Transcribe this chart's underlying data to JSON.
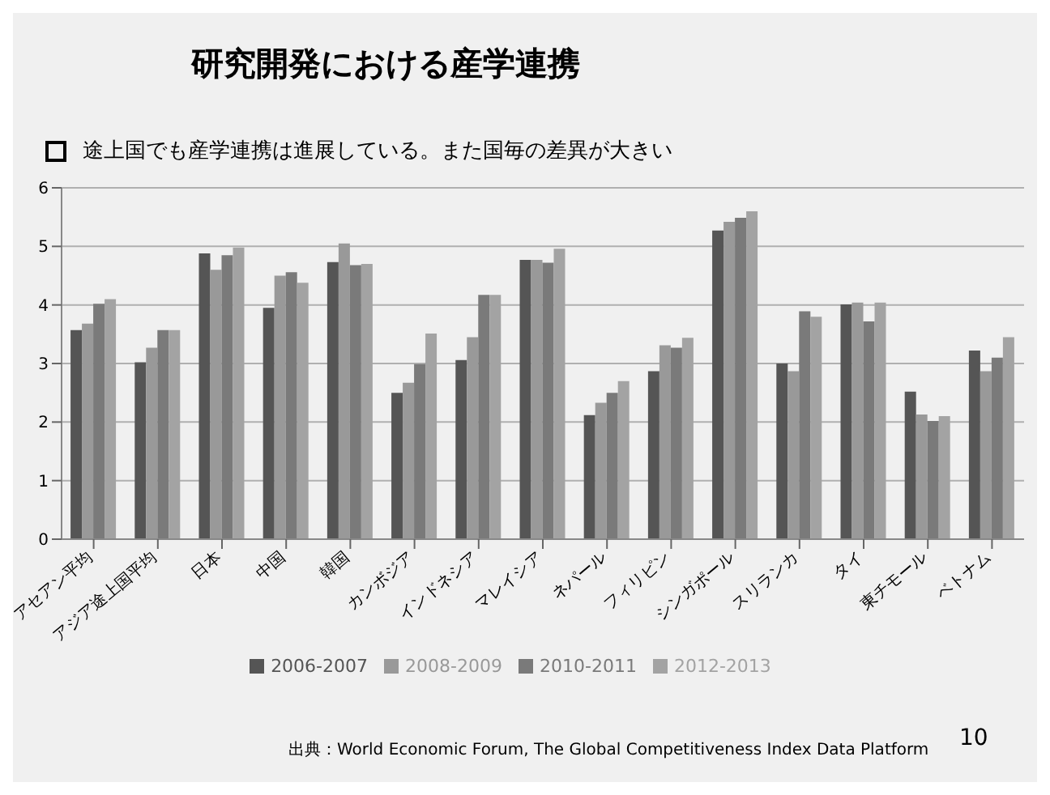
{
  "chart_data": {
    "type": "bar",
    "title": "研究開発における産学連携",
    "subtitle": "途上国でも産学連携は進展している。また国毎の差異が大きい",
    "categories": [
      "アセアン平均",
      "アジア途上国平均",
      "日本",
      "中国",
      "韓国",
      "カンボジア",
      "インドネシア",
      "マレイシア",
      "ネパール",
      "フィリピン",
      "シンガポール",
      "スリランカ",
      "タイ",
      "東チモール",
      "ベトナム"
    ],
    "series": [
      {
        "name": "2006-2007",
        "color": "#555555",
        "values": [
          3.57,
          3.02,
          4.88,
          3.95,
          4.73,
          2.5,
          3.06,
          4.77,
          2.12,
          2.87,
          5.27,
          3.0,
          4.01,
          2.52,
          3.22
        ]
      },
      {
        "name": "2008-2009",
        "color": "#999999",
        "values": [
          3.68,
          3.27,
          4.6,
          4.5,
          5.05,
          2.67,
          3.45,
          4.77,
          2.33,
          3.31,
          5.42,
          2.87,
          4.04,
          2.13,
          2.87
        ]
      },
      {
        "name": "2010-2011",
        "color": "#7a7a7a",
        "values": [
          4.02,
          3.57,
          4.85,
          4.56,
          4.68,
          2.99,
          4.17,
          4.72,
          2.5,
          3.27,
          5.49,
          3.89,
          3.72,
          2.02,
          3.1
        ]
      },
      {
        "name": "2012-2013",
        "color": "#a3a3a3",
        "values": [
          4.1,
          3.57,
          4.98,
          4.38,
          4.7,
          3.51,
          4.17,
          4.96,
          2.7,
          3.44,
          5.6,
          3.8,
          4.04,
          2.1,
          3.45
        ]
      }
    ],
    "ylim": [
      0,
      6
    ],
    "yticks": [
      0,
      1,
      2,
      3,
      4,
      5,
      6
    ],
    "grid": "y",
    "legend": "bottom",
    "annotations": [
      "出典：World Economic  Forum, The Global Competitiveness Index Data Platform",
      "10"
    ]
  }
}
